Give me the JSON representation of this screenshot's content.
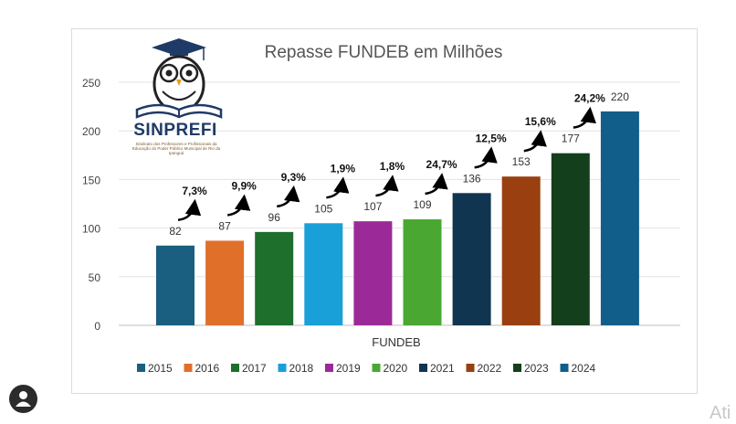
{
  "chart_data": {
    "type": "bar",
    "title": "Repasse FUNDEB em Milhões",
    "xlabel": "FUNDEB",
    "ylabel": "",
    "ylim": [
      0,
      250
    ],
    "yticks": [
      0,
      50,
      100,
      150,
      200,
      250
    ],
    "grid": true,
    "legend_position": "bottom",
    "categories": [
      "2015",
      "2016",
      "2017",
      "2018",
      "2019",
      "2020",
      "2021",
      "2022",
      "2023",
      "2024"
    ],
    "values": [
      82,
      87,
      96,
      105,
      107,
      109,
      136,
      153,
      177,
      220
    ],
    "colors": [
      "#1a5e80",
      "#e06f2a",
      "#1e6e2c",
      "#1aa0d8",
      "#9b2a98",
      "#4aa832",
      "#0f3550",
      "#9a3f10",
      "#133f1c",
      "#125e8a"
    ],
    "growth_labels": [
      "7,3%",
      "9,9%",
      "9,3%",
      "1,9%",
      "1,8%",
      "24,7%",
      "12,5%",
      "15,6%",
      "24,2%"
    ]
  },
  "logo": {
    "brand": "SINPREFI",
    "subtitle": "Sindicato dos Professores e Profissionais da Educação do Poder Público Municipal de Rio da Ipanguá"
  },
  "corner_text": "Ati"
}
